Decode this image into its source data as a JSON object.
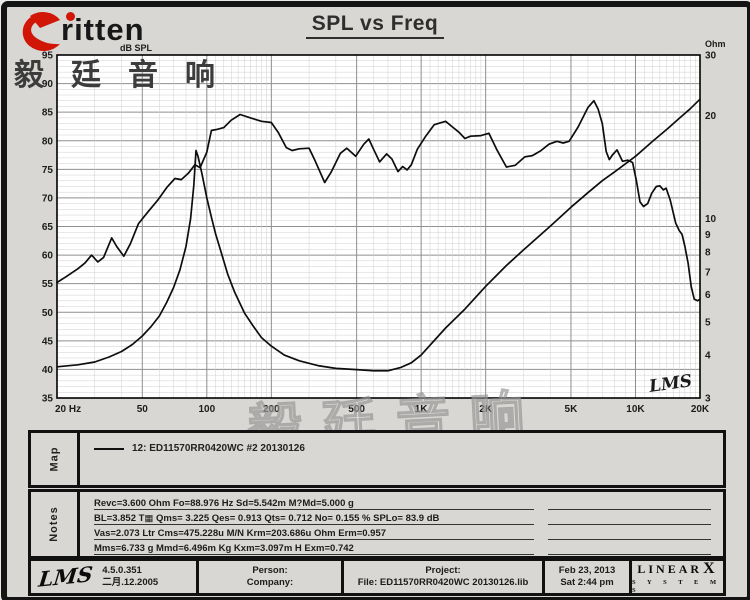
{
  "header": {
    "brand": "ritten",
    "brand_cn": "毅廷音响",
    "title": "SPL vs Freq"
  },
  "watermark": "毅廷音响",
  "chart_data": {
    "type": "line",
    "title": "SPL vs Freq",
    "x_axis": {
      "label": "Hz",
      "scale": "log",
      "min": 20,
      "max": 20000,
      "ticks": [
        "20 Hz",
        "50",
        "100",
        "200",
        "500",
        "1K",
        "2K",
        "5K",
        "10K",
        "20K"
      ],
      "tick_values": [
        20,
        50,
        100,
        200,
        500,
        1000,
        2000,
        5000,
        10000,
        20000
      ],
      "grid": "on"
    },
    "y_left": {
      "label": "dB SPL",
      "scale": "linear",
      "min": 35,
      "max": 95,
      "ticks": [
        95,
        90,
        85,
        80,
        75,
        70,
        65,
        60,
        55,
        50,
        45,
        40,
        35
      ]
    },
    "y_right": {
      "label": "Ohm",
      "scale": "log",
      "min": 3,
      "max": 30,
      "ticks": [
        30,
        20,
        10,
        9,
        8,
        7,
        6,
        5,
        4,
        3
      ]
    },
    "inner_label": "LMS",
    "series": [
      {
        "name": "SPL",
        "axis": "left",
        "color": "#0d0d0d",
        "points": [
          [
            20,
            55.2
          ],
          [
            22,
            56.2
          ],
          [
            25,
            57.6
          ],
          [
            27,
            58.6
          ],
          [
            29,
            60.0
          ],
          [
            31,
            58.8
          ],
          [
            33,
            59.6
          ],
          [
            36,
            63.0
          ],
          [
            38,
            61.5
          ],
          [
            41,
            59.8
          ],
          [
            44,
            62.0
          ],
          [
            48,
            65.5
          ],
          [
            53,
            67.5
          ],
          [
            59,
            69.6
          ],
          [
            65,
            71.8
          ],
          [
            71,
            73.4
          ],
          [
            76,
            73.2
          ],
          [
            82,
            74.3
          ],
          [
            88,
            75.8
          ],
          [
            93,
            75.3
          ],
          [
            100,
            78.0
          ],
          [
            105,
            81.8
          ],
          [
            112,
            82.0
          ],
          [
            120,
            82.3
          ],
          [
            130,
            83.6
          ],
          [
            143,
            84.6
          ],
          [
            160,
            84.0
          ],
          [
            180,
            83.4
          ],
          [
            200,
            83.2
          ],
          [
            215,
            81.5
          ],
          [
            235,
            78.8
          ],
          [
            250,
            78.3
          ],
          [
            270,
            78.6
          ],
          [
            300,
            78.7
          ],
          [
            320,
            76.5
          ],
          [
            355,
            72.7
          ],
          [
            380,
            74.5
          ],
          [
            420,
            77.8
          ],
          [
            450,
            78.7
          ],
          [
            495,
            77.3
          ],
          [
            540,
            79.4
          ],
          [
            570,
            80.3
          ],
          [
            600,
            78.5
          ],
          [
            640,
            76.3
          ],
          [
            690,
            77.7
          ],
          [
            730,
            76.8
          ],
          [
            780,
            74.6
          ],
          [
            820,
            75.5
          ],
          [
            860,
            74.9
          ],
          [
            900,
            75.8
          ],
          [
            960,
            78.5
          ],
          [
            1050,
            80.8
          ],
          [
            1150,
            82.8
          ],
          [
            1300,
            83.4
          ],
          [
            1400,
            82.4
          ],
          [
            1500,
            81.5
          ],
          [
            1600,
            80.4
          ],
          [
            1700,
            80.8
          ],
          [
            1900,
            80.9
          ],
          [
            2070,
            81.3
          ],
          [
            2250,
            78.5
          ],
          [
            2500,
            75.4
          ],
          [
            2750,
            75.7
          ],
          [
            3050,
            77.2
          ],
          [
            3300,
            77.4
          ],
          [
            3600,
            78.2
          ],
          [
            3950,
            79.4
          ],
          [
            4300,
            79.9
          ],
          [
            4600,
            79.6
          ],
          [
            4900,
            79.9
          ],
          [
            5400,
            82.4
          ],
          [
            6000,
            85.8
          ],
          [
            6400,
            87.0
          ],
          [
            6700,
            85.5
          ],
          [
            7000,
            83.0
          ],
          [
            7300,
            78.1
          ],
          [
            7550,
            76.7
          ],
          [
            7800,
            77.5
          ],
          [
            8200,
            78.4
          ],
          [
            8700,
            76.4
          ],
          [
            9200,
            76.6
          ],
          [
            9700,
            76.2
          ],
          [
            10100,
            73.0
          ],
          [
            10500,
            69.3
          ],
          [
            10900,
            68.5
          ],
          [
            11400,
            69.0
          ],
          [
            11900,
            70.8
          ],
          [
            12500,
            72.0
          ],
          [
            13000,
            72.1
          ],
          [
            13500,
            71.4
          ],
          [
            13900,
            71.7
          ],
          [
            14500,
            69.7
          ],
          [
            15400,
            65.6
          ],
          [
            16000,
            64.3
          ],
          [
            16500,
            63.6
          ],
          [
            17000,
            61.5
          ],
          [
            17600,
            58.6
          ],
          [
            18200,
            54.5
          ],
          [
            18800,
            52.3
          ],
          [
            19500,
            52.0
          ],
          [
            20000,
            52.3
          ]
        ]
      },
      {
        "name": "Impedance",
        "axis": "right",
        "color": "#0d0d0d",
        "points": [
          [
            20,
            3.7
          ],
          [
            25,
            3.75
          ],
          [
            30,
            3.82
          ],
          [
            35,
            3.95
          ],
          [
            40,
            4.1
          ],
          [
            45,
            4.3
          ],
          [
            50,
            4.55
          ],
          [
            55,
            4.85
          ],
          [
            60,
            5.2
          ],
          [
            65,
            5.7
          ],
          [
            70,
            6.3
          ],
          [
            75,
            7.1
          ],
          [
            80,
            8.3
          ],
          [
            84,
            10.0
          ],
          [
            87,
            12.5
          ],
          [
            89,
            15.8
          ],
          [
            91,
            15.2
          ],
          [
            95,
            13.5
          ],
          [
            100,
            11.5
          ],
          [
            105,
            10.1
          ],
          [
            110,
            9.0
          ],
          [
            118,
            7.8
          ],
          [
            125,
            6.9
          ],
          [
            135,
            6.1
          ],
          [
            150,
            5.3
          ],
          [
            165,
            4.85
          ],
          [
            180,
            4.5
          ],
          [
            200,
            4.25
          ],
          [
            230,
            4.0
          ],
          [
            270,
            3.85
          ],
          [
            330,
            3.73
          ],
          [
            400,
            3.66
          ],
          [
            500,
            3.63
          ],
          [
            600,
            3.6
          ],
          [
            700,
            3.6
          ],
          [
            800,
            3.68
          ],
          [
            900,
            3.8
          ],
          [
            1000,
            4.0
          ],
          [
            1300,
            4.8
          ],
          [
            1600,
            5.45
          ],
          [
            2000,
            6.35
          ],
          [
            2500,
            7.3
          ],
          [
            3000,
            8.1
          ],
          [
            4000,
            9.5
          ],
          [
            5000,
            10.8
          ],
          [
            6000,
            11.9
          ],
          [
            7000,
            12.9
          ],
          [
            8000,
            13.7
          ],
          [
            10000,
            15.2
          ],
          [
            12000,
            16.8
          ],
          [
            14000,
            18.2
          ],
          [
            16000,
            19.6
          ],
          [
            18000,
            20.9
          ],
          [
            20000,
            22.3
          ]
        ]
      }
    ]
  },
  "map": {
    "label": "Map",
    "legend": "12: ED11570RR0420WC #2 20130126"
  },
  "notes": {
    "label": "Notes",
    "lines": [
      "Revc=3.600 Ohm  Fo=88.976 Hz  Sd=5.542m M?Md=5.000 g",
      "BL=3.852 T▦  Qms= 3.225  Qes= 0.913  Qts= 0.712  No= 0.155 %  SPLo= 83.9 dB",
      "Vas=2.073 Ltr  Cms=475.228u M/N  Krm=203.686u Ohm  Erm=0.957",
      "Mms=6.733 g  Mmd=6.496m Kg  Kxm=3.097m H  Exm=0.742"
    ]
  },
  "footer": {
    "lms_logo": "LMS",
    "version": "4.5.0.351",
    "version_date": "二月.12.2005",
    "person": "Person:",
    "company": "Company:",
    "project": "Project:",
    "file": "File: ED11570RR0420WC 20130126.lib",
    "date": "Feb 23, 2013",
    "time": "Sat  2:44 pm",
    "linearx_line1": "LINEAR",
    "linearx_x": "X",
    "linearx_line2": "S Y S T E M S"
  }
}
